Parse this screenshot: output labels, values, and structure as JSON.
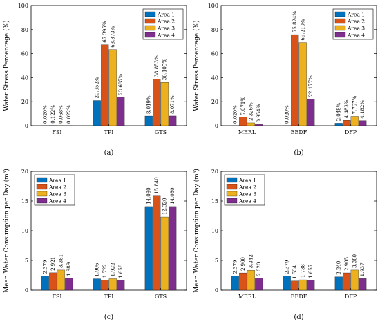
{
  "colors": {
    "Area 1": "#0072BD",
    "Area 2": "#D95319",
    "Area 3": "#EDB120",
    "Area 4": "#7E2F8E"
  },
  "chart_data": [
    {
      "caption": "(a)",
      "type": "bar",
      "ylabel": "Water Stress Percentage (%)",
      "ylim": [
        0,
        100
      ],
      "yticks": [
        "0",
        "20",
        "40",
        "60",
        "80",
        "100"
      ],
      "legend_position": "top-right",
      "categories": [
        "FSI",
        "TPI",
        "GTS"
      ],
      "series": [
        {
          "name": "Area 1",
          "values": [
            0.02,
            20.952,
            8.019
          ],
          "labels": [
            "0.020%",
            "20.952%",
            "8.019%"
          ]
        },
        {
          "name": "Area 2",
          "values": [
            0.122,
            67.395,
            38.853
          ],
          "labels": [
            "0.122%",
            "67.395%",
            "38.853%"
          ]
        },
        {
          "name": "Area 3",
          "values": [
            0.068,
            63.373,
            36.105
          ],
          "labels": [
            "0.068%",
            "63.373%",
            "36.105%"
          ]
        },
        {
          "name": "Area 4",
          "values": [
            0.022,
            23.687,
            8.071
          ],
          "labels": [
            "0.022%",
            "23.687%",
            "8.071%"
          ]
        }
      ]
    },
    {
      "caption": "(b)",
      "type": "bar",
      "ylabel": "Water Stress Percentage (%)",
      "ylim": [
        0,
        100
      ],
      "yticks": [
        "0",
        "20",
        "40",
        "60",
        "80",
        "100"
      ],
      "legend_position": "top-right",
      "categories": [
        "MERL",
        "EEDF",
        "DFP"
      ],
      "series": [
        {
          "name": "Area 1",
          "values": [
            0.02,
            0.02,
            2.048
          ],
          "labels": [
            "0.020%",
            "0.020%",
            "2.048%"
          ]
        },
        {
          "name": "Area 2",
          "values": [
            7.071,
            75.824,
            4.483
          ],
          "labels": [
            "7.071%",
            "75.824%",
            "4.483%"
          ]
        },
        {
          "name": "Area 3",
          "values": [
            2.326,
            69.21,
            7.767
          ],
          "labels": [
            "2.326%",
            "69.210%",
            "7.767%"
          ]
        },
        {
          "name": "Area 4",
          "values": [
            0.954,
            22.177,
            4.182
          ],
          "labels": [
            "0.954%",
            "22.177%",
            "4.182%"
          ]
        }
      ]
    },
    {
      "caption": "(c)",
      "type": "bar",
      "ylabel": "Mean Water Consumption per Day (m³)",
      "ylim": [
        0,
        20
      ],
      "yticks": [
        "0",
        "5",
        "10",
        "15",
        "20"
      ],
      "legend_position": "top-left",
      "categories": [
        "FSI",
        "TPI",
        "GTS"
      ],
      "series": [
        {
          "name": "Area 1",
          "values": [
            2.379,
            1.906,
            14.08
          ],
          "labels": [
            "2.379",
            "1.906",
            "14.080"
          ]
        },
        {
          "name": "Area 2",
          "values": [
            2.921,
            1.722,
            15.84
          ],
          "labels": [
            "2.921",
            "1.722",
            "15.840"
          ]
        },
        {
          "name": "Area 3",
          "values": [
            3.381,
            1.922,
            12.32
          ],
          "labels": [
            "3.381",
            "1.922",
            "12.320"
          ]
        },
        {
          "name": "Area 4",
          "values": [
            1.989,
            1.658,
            14.08
          ],
          "labels": [
            "1.989",
            "1.658",
            "14.080"
          ]
        }
      ]
    },
    {
      "caption": "(d)",
      "type": "bar",
      "ylabel": "Mean Water Consumption per Day (m³)",
      "ylim": [
        0,
        20
      ],
      "yticks": [
        "0",
        "5",
        "10",
        "15",
        "20"
      ],
      "legend_position": "top-left",
      "categories": [
        "MERL",
        "EEDF",
        "DFP"
      ],
      "series": [
        {
          "name": "Area 1",
          "values": [
            2.379,
            2.379,
            2.24
          ],
          "labels": [
            "2.379",
            "2.379",
            "2.240"
          ]
        },
        {
          "name": "Area 2",
          "values": [
            2.9,
            1.534,
            2.905
          ],
          "labels": [
            "2.900",
            "1.534",
            "2.905"
          ]
        },
        {
          "name": "Area 3",
          "values": [
            3.342,
            1.738,
            3.38
          ],
          "labels": [
            "3.342",
            "1.738",
            "3.380"
          ]
        },
        {
          "name": "Area 4",
          "values": [
            2.02,
            1.657,
            1.937
          ],
          "labels": [
            "2.020",
            "1.657",
            "1.937"
          ]
        }
      ]
    }
  ]
}
